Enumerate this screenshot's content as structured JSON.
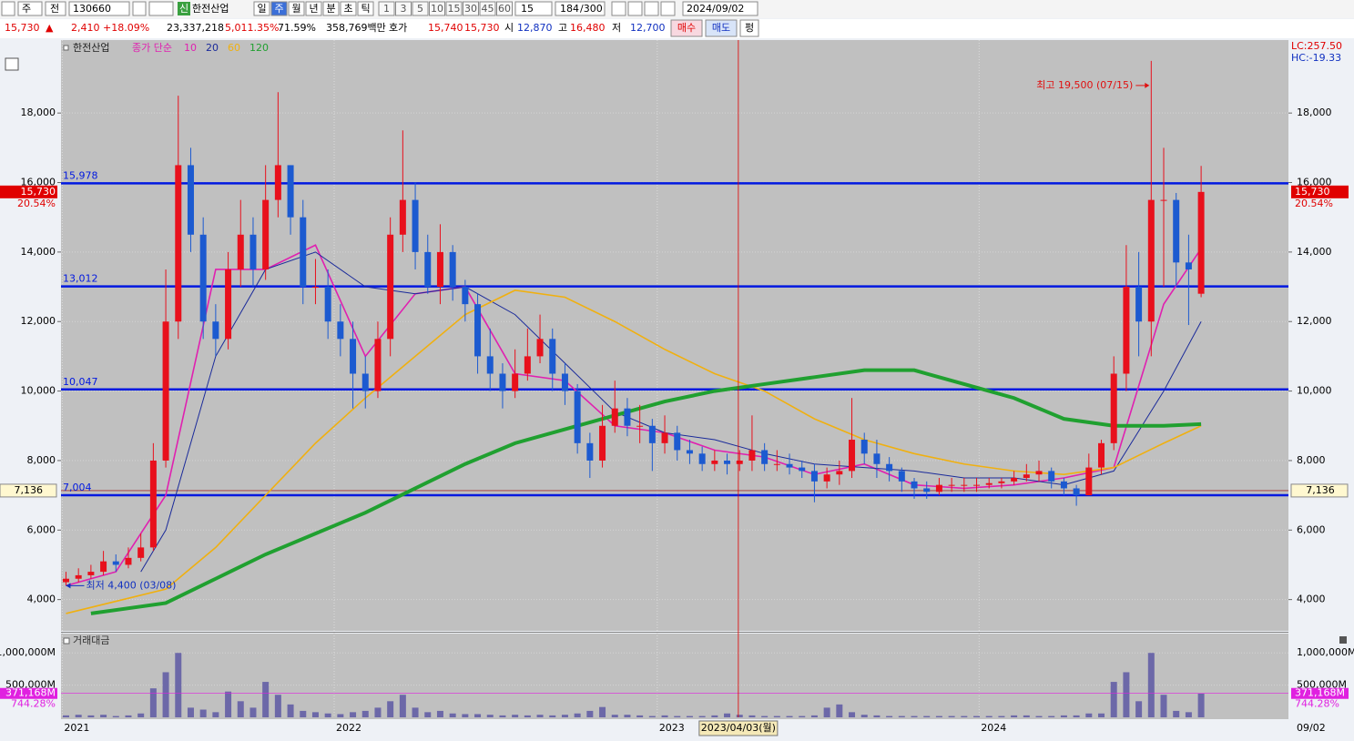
{
  "toolbar": {
    "market": "주",
    "mode": "전",
    "code": "130660",
    "badge": "신",
    "name": "한전산업",
    "periods": [
      "일",
      "주",
      "월",
      "년",
      "분",
      "초",
      "틱"
    ],
    "selected_period": 1,
    "intervals": [
      "1",
      "3",
      "5",
      "10",
      "15",
      "30",
      "45",
      "60"
    ],
    "interval_value": "15",
    "count": "184",
    "count_max": "/300",
    "date": "2024/09/02"
  },
  "quote_bar": {
    "price": "15,730",
    "arrow": "▲",
    "change": "2,410",
    "change_pct": "+18.09%",
    "volume": "23,337,218",
    "volume_pct": "5,011.35%",
    "turnover": "71.59%",
    "amount": "358,769백만",
    "bid_label": "호가",
    "ask": "15,740",
    "bid": "15,730",
    "open_label": "시",
    "open": "12,870",
    "high_label": "고",
    "high": "16,480",
    "low_label": "저",
    "low": "12,700",
    "buy": "매수",
    "sell": "매도",
    "avg": "펑"
  },
  "chart_data": {
    "type": "candlestick",
    "title": "한전산업",
    "ma_label": "종가 단순",
    "up_color": "#e8101c",
    "down_color": "#1c5ad0",
    "xlim": [
      -0.4,
      98
    ],
    "ylim": [
      3100,
      20100
    ],
    "yticks": [
      {
        "value": 4000,
        "label": "4,000"
      },
      {
        "value": 6000,
        "label": "6,000"
      },
      {
        "value": 8000,
        "label": "8,000"
      },
      {
        "value": 10000,
        "label": "10,000"
      },
      {
        "value": 12000,
        "label": "12,000"
      },
      {
        "value": 14000,
        "label": "14,000"
      },
      {
        "value": 16000,
        "label": "16,000"
      },
      {
        "value": 18000,
        "label": "18,000"
      }
    ],
    "xticks": [
      {
        "value": -0.3,
        "label": "2021"
      },
      {
        "value": 21.5,
        "label": "2022"
      },
      {
        "value": 47.4,
        "label": "2023"
      },
      {
        "value": 73.2,
        "label": "2024"
      }
    ],
    "last_date": "09/02",
    "cursor": {
      "value": 53.9,
      "label": "2023/04/03(월)"
    },
    "open": [
      4500,
      4600,
      4700,
      4800,
      5100,
      5000,
      5200,
      5500,
      8000,
      12000,
      16500,
      14500,
      12000,
      11500,
      13500,
      14500,
      13500,
      15500,
      16500,
      15000,
      13000,
      13000,
      12000,
      11500,
      10500,
      10000,
      11500,
      14500,
      15500,
      14000,
      13000,
      14000,
      13000,
      12500,
      11000,
      10500,
      10000,
      10500,
      11000,
      11500,
      10500,
      10000,
      8500,
      8000,
      9000,
      9500,
      9000,
      9000,
      8500,
      8800,
      8300,
      8200,
      7900,
      8000,
      7900,
      8000,
      8300,
      7900,
      7900,
      7800,
      7700,
      7400,
      7600,
      7700,
      8600,
      8200,
      7900,
      7700,
      7400,
      7200,
      7100,
      7300,
      7300,
      7300,
      7300,
      7350,
      7400,
      7500,
      7600,
      7700,
      7400,
      7200,
      7000,
      7800,
      8500,
      10500,
      13000,
      12000,
      15500,
      15500,
      13700,
      12800
    ],
    "high": [
      4800,
      4900,
      5000,
      5400,
      5300,
      5500,
      5900,
      8500,
      13500,
      18500,
      17000,
      15000,
      12500,
      14000,
      15500,
      15000,
      16500,
      18600,
      16500,
      15500,
      13800,
      13500,
      12500,
      12000,
      11000,
      12000,
      15000,
      17500,
      16000,
      14500,
      14800,
      14200,
      13200,
      12800,
      11800,
      10800,
      11200,
      11800,
      12200,
      11800,
      10800,
      10200,
      8800,
      9600,
      10300,
      9800,
      9600,
      9200,
      9300,
      9000,
      8600,
      8400,
      8300,
      8200,
      8300,
      9300,
      8500,
      8300,
      8200,
      8000,
      7900,
      7800,
      8000,
      9800,
      8800,
      8600,
      8100,
      7800,
      7500,
      7400,
      7500,
      7500,
      7500,
      7500,
      7500,
      7500,
      7700,
      7900,
      8000,
      7800,
      7500,
      7300,
      8200,
      8600,
      11000,
      14200,
      14000,
      19500,
      17000,
      15700,
      14500,
      16480
    ],
    "low": [
      4400,
      4500,
      4600,
      4700,
      4800,
      4900,
      5100,
      5400,
      7800,
      11500,
      14000,
      11500,
      11000,
      11200,
      13000,
      13000,
      13200,
      15000,
      14500,
      12500,
      12500,
      11500,
      11000,
      9500,
      9500,
      9800,
      11000,
      14000,
      13500,
      12800,
      12500,
      12600,
      12000,
      10500,
      10000,
      9500,
      9800,
      10300,
      10800,
      10000,
      9600,
      8200,
      7500,
      7800,
      8800,
      8700,
      8500,
      7700,
      8200,
      8000,
      7900,
      7700,
      7700,
      7600,
      7700,
      7700,
      7700,
      7700,
      7600,
      7500,
      6800,
      7200,
      7300,
      7500,
      7900,
      7500,
      7400,
      7100,
      6900,
      6900,
      7000,
      7100,
      7100,
      7100,
      7200,
      7200,
      7300,
      7400,
      7400,
      7200,
      7000,
      6700,
      7000,
      7600,
      8300,
      10000,
      11000,
      11000,
      13000,
      13000,
      11900,
      12700
    ],
    "close": [
      4600,
      4700,
      4800,
      5100,
      5000,
      5200,
      5500,
      8000,
      12000,
      16500,
      14500,
      12000,
      11500,
      13500,
      14500,
      13500,
      15500,
      16500,
      15000,
      13000,
      13000,
      12000,
      11500,
      10500,
      10000,
      11500,
      14500,
      15500,
      14000,
      13000,
      14000,
      13000,
      12500,
      11000,
      10500,
      10000,
      10500,
      11000,
      11500,
      10500,
      10000,
      8500,
      8000,
      9000,
      9500,
      9000,
      9000,
      8500,
      8800,
      8300,
      8200,
      7900,
      8000,
      7900,
      8000,
      8300,
      7900,
      7900,
      7800,
      7700,
      7400,
      7600,
      7700,
      8600,
      8200,
      7900,
      7700,
      7400,
      7200,
      7100,
      7300,
      7300,
      7300,
      7300,
      7350,
      7400,
      7500,
      7600,
      7700,
      7400,
      7200,
      7000,
      7800,
      8500,
      10500,
      13000,
      12000,
      15500,
      15500,
      13700,
      13500,
      15730
    ],
    "moving_averages": [
      {
        "name": "10",
        "color": "#e020b0",
        "width": 1.6,
        "x": [
          0,
          4,
          8,
          12,
          16,
          20,
          24,
          28,
          32,
          36,
          40,
          44,
          48,
          52,
          56,
          60,
          64,
          68,
          72,
          76,
          80,
          84,
          88,
          91
        ],
        "values": [
          4400,
          4800,
          7000,
          13500,
          13500,
          14200,
          11000,
          12800,
          13000,
          10500,
          10300,
          9000,
          8800,
          8300,
          8100,
          7600,
          7900,
          7300,
          7200,
          7300,
          7500,
          7800,
          12500,
          14100
        ]
      },
      {
        "name": "20",
        "color": "#1a2a9a",
        "width": 1,
        "x": [
          6,
          8,
          12,
          16,
          20,
          24,
          28,
          32,
          36,
          40,
          44,
          48,
          52,
          56,
          60,
          64,
          68,
          72,
          76,
          80,
          84,
          88,
          91
        ],
        "values": [
          4800,
          6000,
          11000,
          13500,
          14000,
          13000,
          12800,
          13000,
          12200,
          10800,
          9400,
          8800,
          8600,
          8200,
          7900,
          7800,
          7700,
          7500,
          7500,
          7300,
          7700,
          10000,
          12000
        ]
      },
      {
        "name": "60",
        "color": "#f0b010",
        "width": 1.6,
        "x": [
          0,
          8,
          12,
          16,
          20,
          24,
          28,
          32,
          36,
          40,
          44,
          48,
          52,
          56,
          60,
          64,
          68,
          72,
          76,
          80,
          84,
          88,
          91
        ],
        "values": [
          3600,
          4300,
          5500,
          7000,
          8500,
          9800,
          11000,
          12200,
          12900,
          12700,
          12000,
          11200,
          10500,
          10000,
          9200,
          8600,
          8200,
          7900,
          7700,
          7600,
          7800,
          8500,
          9000
        ]
      },
      {
        "name": "120",
        "color": "#20a030",
        "width": 4,
        "x": [
          2,
          8,
          12,
          16,
          20,
          24,
          28,
          32,
          36,
          40,
          44,
          48,
          52,
          56,
          60,
          64,
          68,
          72,
          76,
          80,
          84,
          88,
          91
        ],
        "values": [
          3600,
          3900,
          4600,
          5300,
          5900,
          6500,
          7200,
          7900,
          8500,
          8900,
          9300,
          9700,
          10000,
          10200,
          10400,
          10600,
          10600,
          10200,
          9800,
          9200,
          9000,
          9000,
          9050
        ]
      }
    ],
    "hlines": [
      {
        "value": 15978,
        "label": "15,978"
      },
      {
        "value": 13012,
        "label": "13,012"
      },
      {
        "value": 10047,
        "label": "10,047"
      },
      {
        "value": 7004,
        "label": "7,004"
      }
    ],
    "hline_color": "#0018e0",
    "current": {
      "value": 15730,
      "label": "15,730",
      "ratio": "20.54%"
    },
    "reference": {
      "value": 7136,
      "label": "7,136"
    },
    "lc": "LC:257.50",
    "hc": "HC:-19.33",
    "annotations": [
      {
        "text": "최고 19,500 (07/15)",
        "color": "#e01010"
      },
      {
        "text": "최저 4,400 (03/08)",
        "color": "#1030c0"
      }
    ],
    "volume": {
      "name": "거래대금",
      "color": "#6c68a8",
      "ylim": [
        0,
        1300000
      ],
      "yticks": [
        {
          "value": 1000000,
          "label": "1,000,000M"
        },
        {
          "value": 500000,
          "label": "500,000M"
        }
      ],
      "values": [
        30000,
        40000,
        30000,
        40000,
        20000,
        30000,
        60000,
        450000,
        700000,
        1000000,
        150000,
        120000,
        80000,
        400000,
        250000,
        150000,
        550000,
        350000,
        200000,
        100000,
        80000,
        60000,
        50000,
        80000,
        100000,
        150000,
        250000,
        350000,
        150000,
        80000,
        100000,
        60000,
        50000,
        50000,
        40000,
        30000,
        40000,
        30000,
        40000,
        30000,
        40000,
        60000,
        100000,
        160000,
        40000,
        40000,
        30000,
        20000,
        30000,
        20000,
        20000,
        20000,
        30000,
        60000,
        40000,
        30000,
        20000,
        20000,
        20000,
        20000,
        30000,
        150000,
        200000,
        80000,
        40000,
        30000,
        20000,
        20000,
        20000,
        20000,
        20000,
        20000,
        20000,
        20000,
        20000,
        20000,
        30000,
        30000,
        20000,
        20000,
        30000,
        30000,
        60000,
        60000,
        550000,
        700000,
        250000,
        1000000,
        350000,
        100000,
        80000,
        371168
      ],
      "current": {
        "value": 371168,
        "label": "371,168M",
        "ratio": "744.28%"
      }
    }
  }
}
